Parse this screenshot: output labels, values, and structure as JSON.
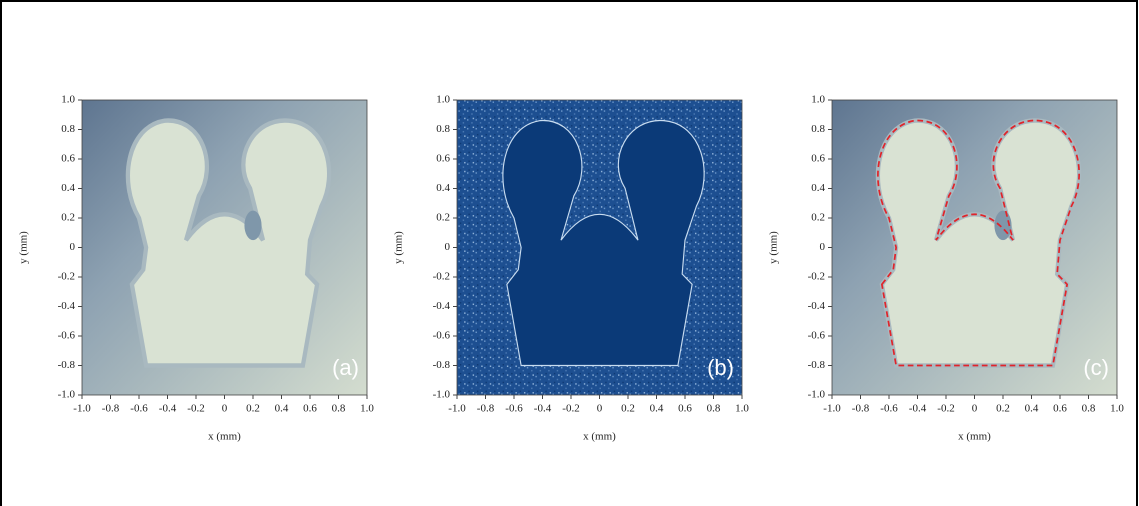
{
  "chart_data": [
    {
      "type": "image",
      "label": "(a)",
      "xlabel": "x (mm)",
      "ylabel": "y (mm)",
      "xlim": [
        -1,
        1
      ],
      "ylim": [
        -1,
        1
      ],
      "xticks": [
        {
          "value": -1,
          "label": "-1.0"
        },
        -0.8,
        -0.6,
        -0.4,
        -0.2,
        0,
        0.2,
        0.4,
        0.6,
        0.8,
        {
          "value": 1,
          "label": "1.0"
        }
      ],
      "yticks": [
        {
          "value": -1,
          "label": "-1.0"
        },
        -0.8,
        -0.6,
        -0.4,
        -0.2,
        0,
        0.2,
        0.4,
        0.6,
        0.8,
        {
          "value": 1,
          "label": "1.0"
        }
      ]
    },
    {
      "type": "image",
      "label": "(b)",
      "xlabel": "x (mm)",
      "ylabel": "y (mm)",
      "xlim": [
        -1,
        1
      ],
      "ylim": [
        -1,
        1
      ],
      "xticks": [
        {
          "value": -1,
          "label": "-1.0"
        },
        -0.8,
        -0.6,
        -0.4,
        -0.2,
        0,
        0.2,
        0.4,
        0.6,
        0.8,
        {
          "value": 1,
          "label": "1.0"
        }
      ],
      "yticks": [
        {
          "value": -1,
          "label": "-1.0"
        },
        -0.8,
        -0.6,
        -0.4,
        -0.2,
        0,
        0.2,
        0.4,
        0.6,
        0.8,
        {
          "value": 1,
          "label": "1.0"
        }
      ]
    },
    {
      "type": "image",
      "label": "(c)",
      "xlabel": "x (mm)",
      "ylabel": "y (mm)",
      "xlim": [
        -1,
        1
      ],
      "ylim": [
        -1,
        1
      ],
      "xticks": [
        {
          "value": -1,
          "label": "-1.0"
        },
        -0.8,
        -0.6,
        -0.4,
        -0.2,
        0,
        0.2,
        0.4,
        0.6,
        0.8,
        {
          "value": 1,
          "label": "1.0"
        }
      ],
      "yticks": [
        {
          "value": -1,
          "label": "-1.0"
        },
        -0.8,
        -0.6,
        -0.4,
        -0.2,
        0,
        0.2,
        0.4,
        0.6,
        0.8,
        {
          "value": 1,
          "label": "1.0"
        }
      ]
    }
  ]
}
